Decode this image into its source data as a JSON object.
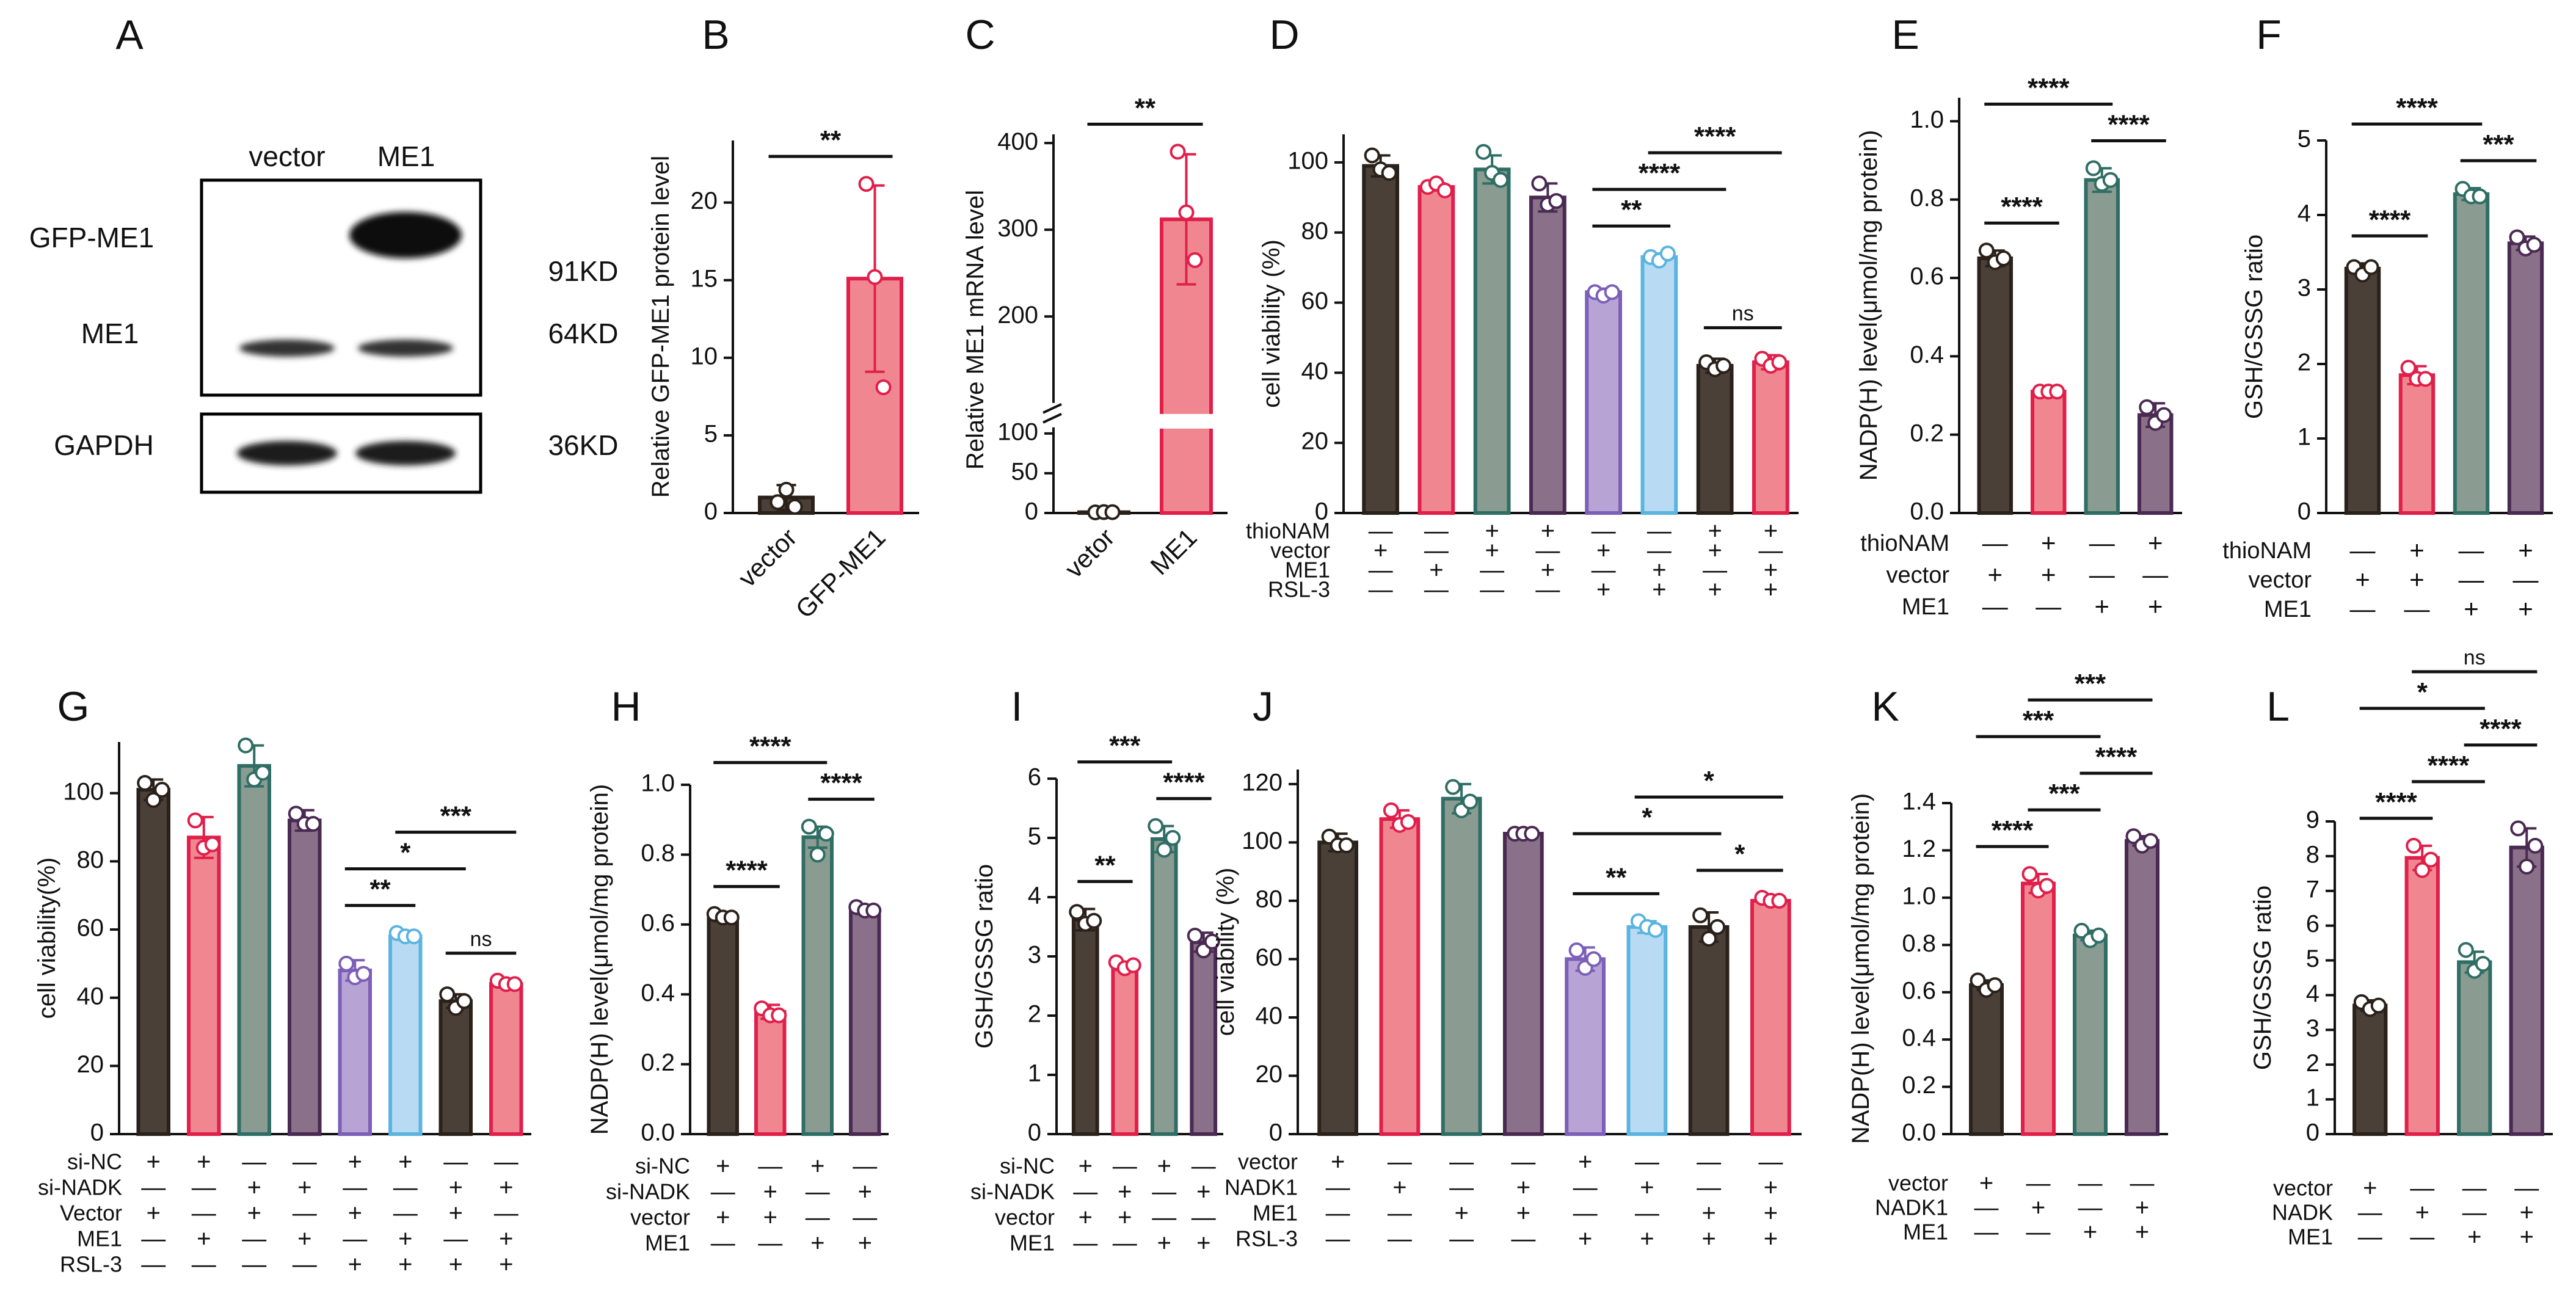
{
  "colors": {
    "dark": "#4b4038",
    "pink": "#f08790",
    "pinkEdge": "#e01f4a",
    "sage": "#8a9b92",
    "sageEdge": "#2f6e64",
    "mauve": "#8a7088",
    "mauveEdge": "#4a2a52",
    "lavender": "#b8a4d4",
    "lavenderEdge": "#7c5fb8",
    "sky": "#b8daf2",
    "skyEdge": "#5bb4e0"
  },
  "blot": {
    "letter": "A",
    "lanes": [
      "vector",
      "ME1"
    ],
    "bands": [
      "GFP-ME1",
      "ME1",
      "GAPDH"
    ],
    "sizes": [
      "91KD",
      "64KD",
      "36KD"
    ]
  },
  "chart_data": [
    {
      "letter": "B",
      "type": "bar",
      "ylabel": "Relative GFP-ME1 protein  level",
      "ylim": [
        0,
        24
      ],
      "yticks": [
        0,
        5,
        10,
        15,
        20
      ],
      "categories": [
        "vector",
        "GFP-ME1"
      ],
      "values": [
        1.0,
        15.1
      ],
      "errors": [
        0.8,
        6.0
      ],
      "points": [
        [
          0.7,
          1.5,
          0.4
        ],
        [
          21.2,
          15.2,
          8.1
        ]
      ],
      "colors": [
        "dark",
        "pink"
      ],
      "sig": [
        {
          "a": 0,
          "b": 1,
          "label": "**"
        }
      ]
    },
    {
      "letter": "C",
      "type": "bar",
      "ylabel": "Relative ME1 mRNA  level",
      "yticks": [
        0,
        50,
        100,
        200,
        300,
        400
      ],
      "categories": [
        "vetor",
        "ME1"
      ],
      "values": [
        1.0,
        312
      ],
      "errors": [
        0.3,
        75
      ],
      "points": [
        [
          0.8,
          1.2,
          1.1
        ],
        [
          390,
          320,
          265
        ]
      ],
      "colors": [
        "dark",
        "pink"
      ],
      "sig": [
        {
          "a": 0,
          "b": 1,
          "label": "**"
        }
      ]
    },
    {
      "letter": "D",
      "type": "bar",
      "ylabel": "cell viability (%)",
      "ylim": [
        0,
        108
      ],
      "yticks": [
        0,
        20,
        40,
        60,
        80,
        100
      ],
      "values": [
        99,
        93,
        98,
        90,
        63,
        73,
        42,
        43
      ],
      "errors": [
        3,
        1,
        4,
        4,
        1,
        1,
        2,
        2
      ],
      "points": [
        [
          102,
          98,
          97
        ],
        [
          93,
          94,
          92
        ],
        [
          103,
          97,
          95
        ],
        [
          94,
          88,
          89
        ],
        [
          63,
          62,
          63
        ],
        [
          73,
          72,
          74
        ],
        [
          43,
          41,
          42
        ],
        [
          44,
          42,
          43
        ]
      ],
      "colors": [
        "dark",
        "pink",
        "sage",
        "mauve",
        "lavender",
        "sky",
        "dark",
        "pink"
      ],
      "sig": [
        {
          "a": 4,
          "b": 5,
          "label": "**"
        },
        {
          "a": 6,
          "b": 7,
          "label": "ns"
        },
        {
          "a": 4,
          "b": 6,
          "label": "****"
        },
        {
          "a": 5,
          "b": 7,
          "label": "****"
        }
      ],
      "table": {
        "rows": [
          "thioNAM",
          "vector",
          "ME1",
          "RSL-3"
        ],
        "cells": [
          [
            "—",
            "—",
            "+",
            "+",
            "—",
            "—",
            "+",
            "+"
          ],
          [
            "+",
            "—",
            "+",
            "—",
            "+",
            "—",
            "+",
            "—"
          ],
          [
            "—",
            "+",
            "—",
            "+",
            "—",
            "+",
            "—",
            "+"
          ],
          [
            "—",
            "—",
            "—",
            "—",
            "+",
            "+",
            "+",
            "+"
          ]
        ]
      }
    },
    {
      "letter": "E",
      "type": "bar",
      "ylabel": "NADP(H) level(μmol/mg protein)",
      "ylim": [
        0,
        1.06
      ],
      "yticks": [
        0.0,
        0.2,
        0.4,
        0.6,
        0.8,
        1.0
      ],
      "decimals": 1,
      "values": [
        0.65,
        0.31,
        0.85,
        0.25
      ],
      "errors": [
        0.02,
        0.01,
        0.03,
        0.03
      ],
      "points": [
        [
          0.67,
          0.64,
          0.65
        ],
        [
          0.31,
          0.31,
          0.31
        ],
        [
          0.88,
          0.84,
          0.85
        ],
        [
          0.27,
          0.23,
          0.25
        ]
      ],
      "colors": [
        "dark",
        "pink",
        "sage",
        "mauve"
      ],
      "sig": [
        {
          "a": 0,
          "b": 1,
          "label": "****"
        },
        {
          "a": 2,
          "b": 3,
          "label": "****"
        },
        {
          "a": 0,
          "b": 2,
          "label": "****"
        }
      ],
      "table": {
        "rows": [
          "thioNAM",
          "vector",
          "ME1"
        ],
        "cells": [
          [
            "—",
            "+",
            "—",
            "+"
          ],
          [
            "+",
            "+",
            "—",
            "—"
          ],
          [
            "—",
            "—",
            "+",
            "+"
          ]
        ]
      }
    },
    {
      "letter": "F",
      "type": "bar",
      "ylabel": "GSH/GSSG ratio",
      "ylim": [
        0,
        5
      ],
      "yticks": [
        0,
        1,
        2,
        3,
        4,
        5
      ],
      "values": [
        3.28,
        1.85,
        4.28,
        3.62
      ],
      "errors": [
        0.07,
        0.12,
        0.08,
        0.09
      ],
      "points": [
        [
          3.3,
          3.2,
          3.3
        ],
        [
          1.95,
          1.8,
          1.8
        ],
        [
          4.35,
          4.25,
          4.25
        ],
        [
          3.7,
          3.55,
          3.6
        ]
      ],
      "colors": [
        "dark",
        "pink",
        "sage",
        "mauve"
      ],
      "sig": [
        {
          "a": 0,
          "b": 1,
          "label": "****"
        },
        {
          "a": 2,
          "b": 3,
          "label": "***"
        },
        {
          "a": 0,
          "b": 2,
          "label": "****"
        }
      ],
      "table": {
        "rows": [
          "thioNAM",
          "vector",
          "ME1"
        ],
        "cells": [
          [
            "—",
            "+",
            "—",
            "+"
          ],
          [
            "+",
            "+",
            "—",
            "—"
          ],
          [
            "—",
            "—",
            "+",
            "+"
          ]
        ]
      }
    },
    {
      "letter": "G",
      "type": "bar",
      "ylabel": "cell viability(%)",
      "ylim": [
        0,
        115
      ],
      "yticks": [
        0,
        20,
        40,
        60,
        80,
        100
      ],
      "values": [
        101,
        87,
        108,
        92,
        48,
        58,
        39,
        44
      ],
      "errors": [
        3,
        6,
        6,
        3,
        3,
        1,
        2,
        1
      ],
      "points": [
        [
          103,
          98,
          101
        ],
        [
          92,
          84,
          85
        ],
        [
          114,
          104,
          106
        ],
        [
          94,
          91,
          91
        ],
        [
          50,
          46,
          47
        ],
        [
          59,
          58,
          58
        ],
        [
          41,
          37,
          39
        ],
        [
          45,
          44,
          44
        ]
      ],
      "colors": [
        "dark",
        "pink",
        "sage",
        "mauve",
        "lavender",
        "sky",
        "dark",
        "pink"
      ],
      "sig": [
        {
          "a": 4,
          "b": 5,
          "label": "**"
        },
        {
          "a": 6,
          "b": 7,
          "label": "ns"
        },
        {
          "a": 4,
          "b": 6,
          "label": "*"
        },
        {
          "a": 5,
          "b": 7,
          "label": "***"
        }
      ],
      "table": {
        "rows": [
          "si-NC",
          "si-NADK",
          "Vector",
          "ME1",
          "RSL-3"
        ],
        "cells": [
          [
            "+",
            "+",
            "—",
            "—",
            "+",
            "+",
            "—",
            "—"
          ],
          [
            "—",
            "—",
            "+",
            "+",
            "—",
            "—",
            "+",
            "+"
          ],
          [
            "+",
            "—",
            "+",
            "—",
            "+",
            "—",
            "+",
            "—"
          ],
          [
            "—",
            "+",
            "—",
            "+",
            "—",
            "+",
            "—",
            "+"
          ],
          [
            "—",
            "—",
            "—",
            "—",
            "+",
            "+",
            "+",
            "+"
          ]
        ]
      }
    },
    {
      "letter": "H",
      "type": "bar",
      "ylabel": "NADP(H) level(μmol/mg protein)",
      "ylim": [
        0,
        1.0
      ],
      "yticks": [
        0.0,
        0.2,
        0.4,
        0.6,
        0.8,
        1.0
      ],
      "decimals": 1,
      "values": [
        0.62,
        0.35,
        0.85,
        0.64
      ],
      "errors": [
        0.01,
        0.02,
        0.03,
        0.01
      ],
      "points": [
        [
          0.63,
          0.62,
          0.62
        ],
        [
          0.36,
          0.34,
          0.34
        ],
        [
          0.88,
          0.8,
          0.86
        ],
        [
          0.65,
          0.64,
          0.64
        ]
      ],
      "colors": [
        "dark",
        "pink",
        "sage",
        "mauve"
      ],
      "sig": [
        {
          "a": 0,
          "b": 1,
          "label": "****"
        },
        {
          "a": 2,
          "b": 3,
          "label": "****"
        },
        {
          "a": 0,
          "b": 2,
          "label": "****"
        }
      ],
      "table": {
        "rows": [
          "si-NC",
          "si-NADK",
          "vector",
          "ME1"
        ],
        "cells": [
          [
            "+",
            "—",
            "+",
            "—"
          ],
          [
            "—",
            "+",
            "—",
            "+"
          ],
          [
            "+",
            "+",
            "—",
            "—"
          ],
          [
            "—",
            "—",
            "+",
            "+"
          ]
        ]
      }
    },
    {
      "letter": "I",
      "type": "bar",
      "ylabel": "GSH/GSSG ratio",
      "ylim": [
        0,
        6
      ],
      "yticks": [
        0,
        1,
        2,
        3,
        4,
        5,
        6
      ],
      "values": [
        3.62,
        2.84,
        4.98,
        3.24
      ],
      "errors": [
        0.18,
        0.07,
        0.22,
        0.16
      ],
      "points": [
        [
          3.75,
          3.55,
          3.6
        ],
        [
          2.9,
          2.8,
          2.85
        ],
        [
          5.2,
          4.8,
          5.0
        ],
        [
          3.35,
          3.1,
          3.25
        ]
      ],
      "colors": [
        "dark",
        "pink",
        "sage",
        "mauve"
      ],
      "sig": [
        {
          "a": 0,
          "b": 1,
          "label": "**"
        },
        {
          "a": 2,
          "b": 3,
          "label": "****"
        },
        {
          "a": 0,
          "b": 2,
          "label": "***"
        }
      ],
      "table": {
        "rows": [
          "si-NC",
          "si-NADK",
          "vector",
          "ME1"
        ],
        "cells": [
          [
            "+",
            "—",
            "+",
            "—"
          ],
          [
            "—",
            "+",
            "—",
            "+"
          ],
          [
            "+",
            "+",
            "—",
            "—"
          ],
          [
            "—",
            "—",
            "+",
            "+"
          ]
        ]
      }
    },
    {
      "letter": "J",
      "type": "bar",
      "ylabel": "cell viability (%)",
      "ylim": [
        0,
        125
      ],
      "yticks": [
        0,
        20,
        40,
        60,
        80,
        100,
        120
      ],
      "values": [
        100,
        108,
        115,
        103,
        60,
        71,
        71,
        80
      ],
      "errors": [
        3,
        3,
        5,
        1,
        4,
        2,
        5,
        1
      ],
      "points": [
        [
          102,
          99,
          99
        ],
        [
          111,
          106,
          107
        ],
        [
          119,
          111,
          114
        ],
        [
          103,
          103,
          103
        ],
        [
          63,
          57,
          60
        ],
        [
          73,
          71,
          70
        ],
        [
          75,
          67,
          71
        ],
        [
          81,
          80,
          80
        ]
      ],
      "colors": [
        "dark",
        "pink",
        "sage",
        "mauve",
        "lavender",
        "sky",
        "dark",
        "pink"
      ],
      "sig": [
        {
          "a": 4,
          "b": 5,
          "label": "**"
        },
        {
          "a": 6,
          "b": 7,
          "label": "*"
        },
        {
          "a": 4,
          "b": 6,
          "label": "*"
        },
        {
          "a": 5,
          "b": 7,
          "label": "*"
        }
      ],
      "table": {
        "rows": [
          "vector",
          "NADK1",
          "ME1",
          "RSL-3"
        ],
        "cells": [
          [
            "+",
            "—",
            "—",
            "—",
            "+",
            "—",
            "—",
            "—"
          ],
          [
            "—",
            "+",
            "—",
            "+",
            "—",
            "+",
            "—",
            "+"
          ],
          [
            "—",
            "—",
            "+",
            "+",
            "—",
            "—",
            "+",
            "+"
          ],
          [
            "—",
            "—",
            "—",
            "—",
            "+",
            "+",
            "+",
            "+"
          ]
        ]
      }
    },
    {
      "letter": "K",
      "type": "bar",
      "ylabel": "NADP(H) level(μmol/mg protein)",
      "ylim": [
        0,
        1.4
      ],
      "yticks": [
        0.0,
        0.2,
        0.4,
        0.6,
        0.8,
        1.0,
        1.2,
        1.4
      ],
      "decimals": 1,
      "values": [
        0.63,
        1.06,
        0.84,
        1.24
      ],
      "errors": [
        0.02,
        0.04,
        0.02,
        0.02
      ],
      "points": [
        [
          0.65,
          0.61,
          0.63
        ],
        [
          1.1,
          1.03,
          1.05
        ],
        [
          0.86,
          0.82,
          0.84
        ],
        [
          1.26,
          1.22,
          1.24
        ]
      ],
      "colors": [
        "dark",
        "pink",
        "sage",
        "mauve"
      ],
      "sig": [
        {
          "a": 0,
          "b": 1,
          "label": "****"
        },
        {
          "a": 1,
          "b": 2,
          "label": "***"
        },
        {
          "a": 2,
          "b": 3,
          "label": "****"
        },
        {
          "a": 0,
          "b": 2,
          "label": "***"
        },
        {
          "a": 1,
          "b": 3,
          "label": "***"
        }
      ],
      "table": {
        "rows": [
          "vector",
          "NADK1",
          "ME1"
        ],
        "cells": [
          [
            "+",
            "—",
            "—",
            "—"
          ],
          [
            "—",
            "+",
            "—",
            "+"
          ],
          [
            "—",
            "—",
            "+",
            "+"
          ]
        ]
      }
    },
    {
      "letter": "L",
      "type": "bar",
      "ylabel": "GSH/GSSG ratio",
      "ylim": [
        0,
        9
      ],
      "yticks": [
        0,
        1,
        2,
        3,
        4,
        5,
        6,
        7,
        8,
        9
      ],
      "values": [
        3.7,
        7.95,
        4.95,
        8.25
      ],
      "errors": [
        0.15,
        0.35,
        0.3,
        0.55
      ],
      "points": [
        [
          3.8,
          3.6,
          3.7
        ],
        [
          8.3,
          7.6,
          7.9
        ],
        [
          5.3,
          4.7,
          4.9
        ],
        [
          8.8,
          7.7,
          8.3
        ]
      ],
      "colors": [
        "dark",
        "pink",
        "sage",
        "mauve"
      ],
      "sig": [
        {
          "a": 0,
          "b": 1,
          "label": "****"
        },
        {
          "a": 1,
          "b": 2,
          "label": "****"
        },
        {
          "a": 2,
          "b": 3,
          "label": "****"
        },
        {
          "a": 0,
          "b": 2,
          "label": "*"
        },
        {
          "a": 1,
          "b": 3,
          "label": "ns"
        }
      ],
      "table": {
        "rows": [
          "vector",
          "NADK",
          "ME1"
        ],
        "cells": [
          [
            "+",
            "—",
            "—",
            "—"
          ],
          [
            "—",
            "+",
            "—",
            "+"
          ],
          [
            "—",
            "—",
            "+",
            "+"
          ]
        ]
      }
    }
  ]
}
